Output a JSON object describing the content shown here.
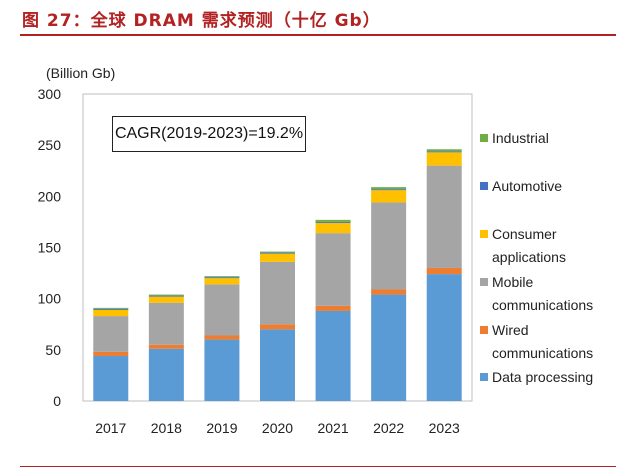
{
  "figure": {
    "title": "图 27：全球 DRAM 需求预测（十亿 Gb）",
    "annotation": "CAGR(2019-2023)=19.2%"
  },
  "chart_data": {
    "type": "bar",
    "stacked": true,
    "unit_label": "(Billion Gb)",
    "categories": [
      "2017",
      "2018",
      "2019",
      "2020",
      "2021",
      "2022",
      "2023"
    ],
    "ylim": [
      0,
      300
    ],
    "yticks": [
      0,
      50,
      100,
      150,
      200,
      250,
      300
    ],
    "series": [
      {
        "name": "Data processing",
        "color": "#5b9bd5",
        "values": [
          44,
          51,
          60,
          70,
          88,
          104,
          124
        ]
      },
      {
        "name": "Wired communications",
        "color": "#ed7d31",
        "values": [
          4,
          4,
          4,
          5,
          5,
          5,
          6
        ]
      },
      {
        "name": "Mobile communications",
        "color": "#a5a5a5",
        "values": [
          35,
          41,
          50,
          61,
          71,
          85,
          100
        ]
      },
      {
        "name": "Consumer applications",
        "color": "#ffc000",
        "values": [
          6,
          6,
          6,
          8,
          10,
          12,
          13
        ]
      },
      {
        "name": "Automotive",
        "color": "#4472c4",
        "values": [
          1,
          1,
          1,
          1,
          1,
          1,
          1
        ]
      },
      {
        "name": "Industrial",
        "color": "#70ad47",
        "values": [
          1,
          1,
          1,
          1,
          2,
          2,
          2
        ]
      }
    ],
    "legend": [
      {
        "series": "Industrial",
        "lines": [
          "Industrial"
        ]
      },
      {
        "series": "Automotive",
        "lines": [
          "Automotive"
        ]
      },
      {
        "series": "Consumer applications",
        "lines": [
          "Consumer",
          "applications"
        ]
      },
      {
        "series": "Mobile communications",
        "lines": [
          "Mobile",
          "communications"
        ]
      },
      {
        "series": "Wired communications",
        "lines": [
          "Wired",
          "communications"
        ]
      },
      {
        "series": "Data processing",
        "lines": [
          "Data processing"
        ]
      }
    ],
    "legend_position": "right"
  }
}
